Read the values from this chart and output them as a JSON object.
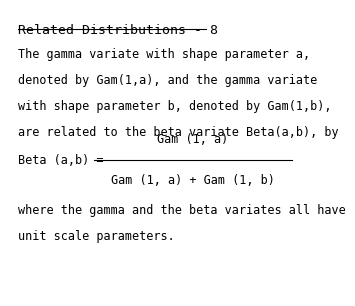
{
  "title": "Related Distributions - 8",
  "background_color": "#ffffff",
  "text_color": "#000000",
  "font_family": "monospace",
  "title_fontsize": 9.5,
  "body_fontsize": 8.5,
  "line1": "The gamma variate with shape parameter a,",
  "line2": "denoted by Gam(1,a), and the gamma variate",
  "line3": "with shape parameter b, denoted by Gam(1,b),",
  "line4": "are related to the beta variate Beta(a,b), by",
  "formula_label": "Beta (a,b) = ",
  "formula_numerator": "Gam (1, a)",
  "formula_denominator": "Gam (1, a) + Gam (1, b)",
  "line5": "where the gamma and the beta variates all have",
  "line6": "unit scale parameters."
}
